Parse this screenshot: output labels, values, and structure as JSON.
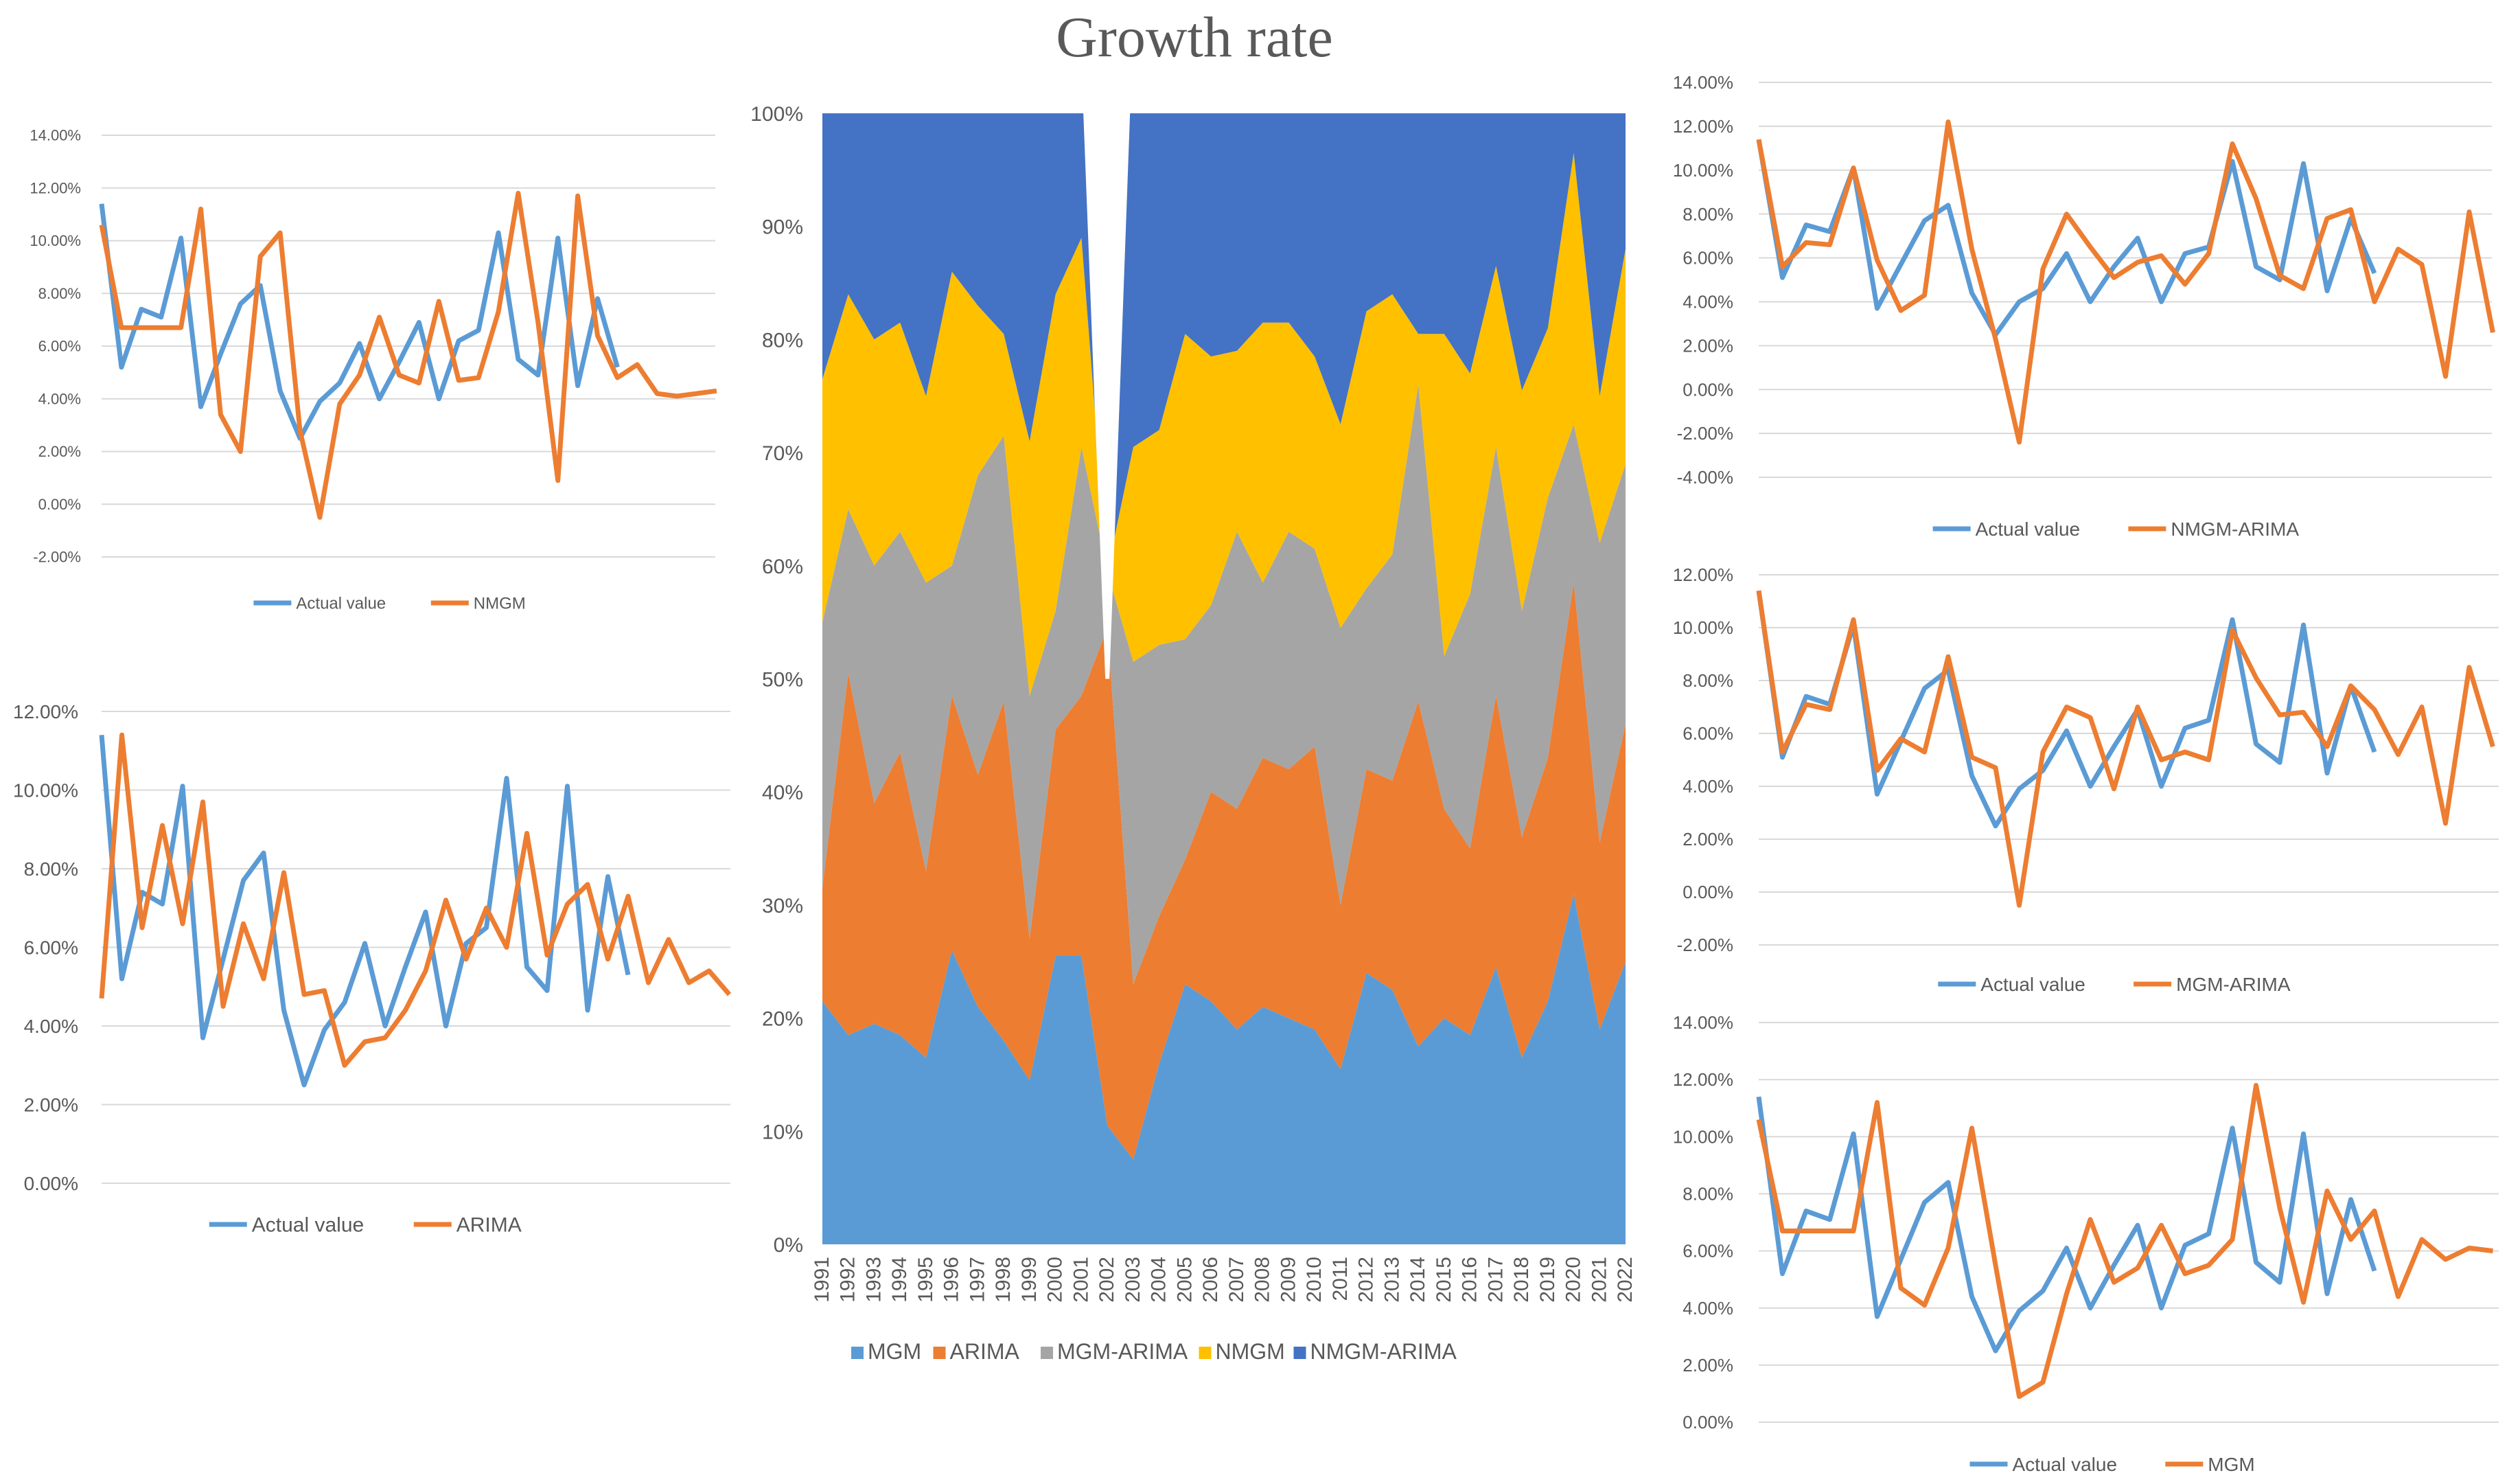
{
  "title": "Growth rate",
  "colors": {
    "actual": "#5b9bd5",
    "model": "#ed7d31",
    "mgm": "#5b9bd5",
    "arima": "#ed7d31",
    "mgm_arima": "#a5a5a5",
    "nmgm": "#ffc000",
    "nmgm_arima": "#4472c4",
    "grid": "#d9d9d9",
    "text": "#595959"
  },
  "chart_data": [
    {
      "id": "left_top",
      "type": "line",
      "ylim": [
        -0.02,
        0.14
      ],
      "yticks": [
        "14.00%",
        "12.00%",
        "10.00%",
        "8.00%",
        "6.00%",
        "4.00%",
        "2.00%",
        "0.00%",
        "-2.00%"
      ],
      "series": [
        {
          "name": "Actual value",
          "values": [
            0.114,
            0.052,
            0.074,
            0.071,
            0.101,
            0.037,
            0.057,
            0.076,
            0.083,
            0.043,
            0.025,
            0.039,
            0.046,
            0.061,
            0.04,
            0.054,
            0.069,
            0.04,
            0.062,
            0.066,
            0.103,
            0.055,
            0.049,
            0.101,
            0.045,
            0.078,
            0.052
          ]
        },
        {
          "name": "NMGM",
          "values": [
            0.106,
            0.067,
            0.067,
            0.067,
            0.067,
            0.112,
            0.034,
            0.02,
            0.094,
            0.103,
            0.028,
            -0.005,
            0.038,
            0.049,
            0.071,
            0.049,
            0.046,
            0.077,
            0.047,
            0.048,
            0.073,
            0.118,
            0.069,
            0.009,
            0.117,
            0.064,
            0.048,
            0.053,
            0.042,
            0.041,
            0.042,
            0.043
          ]
        }
      ]
    },
    {
      "id": "left_bottom",
      "type": "line",
      "ylim": [
        0.0,
        0.12
      ],
      "yticks": [
        "12.00%",
        "10.00%",
        "8.00%",
        "6.00%",
        "4.00%",
        "2.00%",
        "0.00%"
      ],
      "series": [
        {
          "name": "Actual value",
          "values": [
            0.114,
            0.052,
            0.074,
            0.071,
            0.101,
            0.037,
            0.057,
            0.077,
            0.084,
            0.044,
            0.025,
            0.039,
            0.046,
            0.061,
            0.04,
            0.055,
            0.069,
            0.04,
            0.061,
            0.065,
            0.103,
            0.055,
            0.049,
            0.101,
            0.044,
            0.078,
            0.053
          ]
        },
        {
          "name": "ARIMA",
          "values": [
            0.047,
            0.114,
            0.065,
            0.091,
            0.066,
            0.097,
            0.045,
            0.066,
            0.052,
            0.079,
            0.048,
            0.049,
            0.03,
            0.036,
            0.037,
            0.044,
            0.054,
            0.072,
            0.057,
            0.07,
            0.06,
            0.089,
            0.058,
            0.071,
            0.076,
            0.057,
            0.073,
            0.051,
            0.062,
            0.051,
            0.054,
            0.048
          ]
        }
      ]
    },
    {
      "id": "center",
      "type": "area",
      "title": "Growth rate",
      "categories": [
        "1991",
        "1992",
        "1993",
        "1994",
        "1995",
        "1996",
        "1997",
        "1998",
        "1999",
        "2000",
        "2001",
        "2002",
        "2003",
        "2004",
        "2005",
        "2006",
        "2007",
        "2008",
        "2009",
        "2010",
        "2011",
        "2012",
        "2013",
        "2014",
        "2015",
        "2016",
        "2017",
        "2018",
        "2019",
        "2020",
        "2021",
        "2022"
      ],
      "yticks": [
        "100%",
        "90%",
        "80%",
        "70%",
        "60%",
        "50%",
        "40%",
        "30%",
        "20%",
        "10%",
        "0%"
      ],
      "ylim": [
        0,
        100
      ],
      "stacked_percent": true,
      "series": [
        {
          "name": "MGM",
          "values": [
            21.5,
            18.5,
            19.5,
            18.5,
            16.5,
            26,
            21,
            18,
            14.5,
            25.5,
            25.5,
            10.5,
            7.5,
            16,
            23,
            21.5,
            19,
            21,
            20,
            19,
            15.5,
            24,
            22.5,
            17.5,
            20,
            18.5,
            24.5,
            16.5,
            21.5,
            31,
            19,
            25
          ]
        },
        {
          "name": "ARIMA",
          "values": [
            10,
            32,
            19.5,
            25,
            16.5,
            22.5,
            20.5,
            30,
            12.5,
            20,
            23,
            44,
            15.5,
            13,
            11,
            18.5,
            19.5,
            22,
            22,
            25,
            14.5,
            18,
            18.5,
            30.5,
            18.5,
            16.5,
            24,
            19.5,
            21.5,
            27.5,
            16.5,
            21
          ]
        },
        {
          "name": "MGM-ARIMA",
          "values": [
            23.5,
            14.5,
            21,
            19.5,
            25.5,
            11.5,
            26.5,
            23.5,
            21.5,
            10.5,
            22,
            5,
            28.5,
            24,
            19.5,
            16.5,
            24.5,
            15.5,
            21,
            17.5,
            24.5,
            16,
            20,
            28,
            13.5,
            22.5,
            22,
            20,
            23,
            14,
            26.5,
            23
          ]
        },
        {
          "name": "NMGM",
          "values": [
            21.5,
            19,
            20,
            18.5,
            16.5,
            26,
            15,
            9,
            22.5,
            28,
            18.5,
            0,
            19,
            19,
            27,
            22,
            16,
            23,
            18.5,
            17,
            18,
            24.5,
            23,
            4.5,
            28.5,
            19.5,
            16,
            19.5,
            15,
            24,
            13,
            19
          ]
        },
        {
          "name": "NMGM-ARIMA",
          "values": [
            23.5,
            16,
            20,
            18.5,
            25,
            14,
            17,
            19.5,
            29,
            16,
            11,
            40.5,
            29.5,
            28,
            19.5,
            21.5,
            21,
            18.5,
            18.5,
            21.5,
            27.5,
            17.5,
            16,
            19.5,
            19.5,
            23,
            13.5,
            24.5,
            19,
            3.5,
            25,
            12
          ]
        }
      ],
      "gap_at": "2002"
    },
    {
      "id": "right_top",
      "type": "line",
      "ylim": [
        -0.04,
        0.14
      ],
      "yticks": [
        "14.00%",
        "12.00%",
        "10.00%",
        "8.00%",
        "6.00%",
        "4.00%",
        "2.00%",
        "0.00%",
        "-2.00%",
        "-4.00%"
      ],
      "series": [
        {
          "name": "Actual value",
          "values": [
            0.114,
            0.051,
            0.075,
            0.072,
            0.101,
            0.037,
            0.057,
            0.077,
            0.084,
            0.044,
            0.025,
            0.04,
            0.046,
            0.062,
            0.04,
            0.056,
            0.069,
            0.04,
            0.062,
            0.065,
            0.104,
            0.056,
            0.05,
            0.103,
            0.045,
            0.078,
            0.053
          ]
        },
        {
          "name": "NMGM-ARIMA",
          "values": [
            0.114,
            0.056,
            0.067,
            0.066,
            0.101,
            0.059,
            0.036,
            0.043,
            0.122,
            0.064,
            0.023,
            -0.024,
            0.055,
            0.08,
            0.065,
            0.051,
            0.058,
            0.061,
            0.048,
            0.062,
            0.112,
            0.087,
            0.052,
            0.046,
            0.078,
            0.082,
            0.04,
            0.064,
            0.057,
            0.006,
            0.081,
            0.026
          ]
        }
      ]
    },
    {
      "id": "right_middle",
      "type": "line",
      "ylim": [
        -0.02,
        0.12
      ],
      "yticks": [
        "12.00%",
        "10.00%",
        "8.00%",
        "6.00%",
        "4.00%",
        "2.00%",
        "0.00%",
        "-2.00%"
      ],
      "series": [
        {
          "name": "Actual value",
          "values": [
            0.114,
            0.051,
            0.074,
            0.071,
            0.101,
            0.037,
            0.057,
            0.077,
            0.084,
            0.044,
            0.025,
            0.039,
            0.046,
            0.061,
            0.04,
            0.055,
            0.069,
            0.04,
            0.062,
            0.065,
            0.103,
            0.056,
            0.049,
            0.101,
            0.045,
            0.078,
            0.053
          ]
        },
        {
          "name": "MGM-ARIMA",
          "values": [
            0.114,
            0.053,
            0.071,
            0.069,
            0.103,
            0.046,
            0.058,
            0.053,
            0.089,
            0.051,
            0.047,
            -0.005,
            0.053,
            0.07,
            0.066,
            0.039,
            0.07,
            0.05,
            0.053,
            0.05,
            0.099,
            0.081,
            0.067,
            0.068,
            0.055,
            0.078,
            0.069,
            0.052,
            0.07,
            0.026,
            0.085,
            0.055
          ]
        }
      ]
    },
    {
      "id": "right_bottom",
      "type": "line",
      "ylim": [
        0.0,
        0.14
      ],
      "yticks": [
        "14.00%",
        "12.00%",
        "10.00%",
        "8.00%",
        "6.00%",
        "4.00%",
        "2.00%",
        "0.00%"
      ],
      "series": [
        {
          "name": "Actual value",
          "values": [
            0.114,
            0.052,
            0.074,
            0.071,
            0.101,
            0.037,
            0.057,
            0.077,
            0.084,
            0.044,
            0.025,
            0.039,
            0.046,
            0.061,
            0.04,
            0.055,
            0.069,
            0.04,
            0.062,
            0.066,
            0.103,
            0.056,
            0.049,
            0.101,
            0.045,
            0.078,
            0.053
          ]
        },
        {
          "name": "MGM",
          "values": [
            0.106,
            0.067,
            0.067,
            0.067,
            0.067,
            0.112,
            0.047,
            0.041,
            0.061,
            0.103,
            0.055,
            0.009,
            0.014,
            0.045,
            0.071,
            0.049,
            0.054,
            0.069,
            0.052,
            0.055,
            0.064,
            0.118,
            0.075,
            0.042,
            0.081,
            0.064,
            0.074,
            0.044,
            0.064,
            0.057,
            0.061,
            0.06
          ]
        }
      ]
    }
  ]
}
